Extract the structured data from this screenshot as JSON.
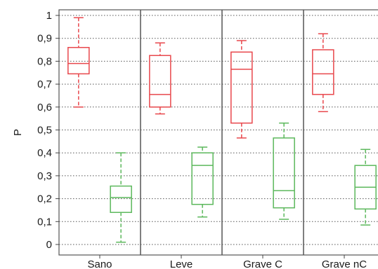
{
  "chart_data": {
    "type": "box",
    "title": "",
    "xlabel": "",
    "ylabel": "P",
    "ylim": [
      0,
      1
    ],
    "yticks": [
      "0",
      "0,1",
      "0,2",
      "0,3",
      "0,4",
      "0,5",
      "0,6",
      "0,7",
      "0,8",
      "0,9",
      "1"
    ],
    "categories": [
      "Sano",
      "Leve",
      "Grave C",
      "Grave nC"
    ],
    "grid": "horizontal-dotted",
    "series": [
      {
        "color": "#e8474c",
        "boxes": [
          {
            "min": 0.6,
            "q1": 0.745,
            "median": 0.79,
            "q3": 0.86,
            "max": 0.99
          },
          {
            "min": 0.57,
            "q1": 0.6,
            "median": 0.655,
            "q3": 0.825,
            "max": 0.88
          },
          {
            "min": 0.465,
            "q1": 0.53,
            "median": 0.765,
            "q3": 0.84,
            "max": 0.89
          },
          {
            "min": 0.58,
            "q1": 0.655,
            "median": 0.745,
            "q3": 0.85,
            "max": 0.92
          }
        ]
      },
      {
        "color": "#5cb85c",
        "boxes": [
          {
            "min": 0.01,
            "q1": 0.14,
            "median": 0.205,
            "q3": 0.255,
            "max": 0.4
          },
          {
            "min": 0.12,
            "q1": 0.175,
            "median": 0.345,
            "q3": 0.4,
            "max": 0.425
          },
          {
            "min": 0.11,
            "q1": 0.16,
            "median": 0.235,
            "q3": 0.465,
            "max": 0.53
          },
          {
            "min": 0.085,
            "q1": 0.155,
            "median": 0.25,
            "q3": 0.345,
            "max": 0.415
          }
        ]
      }
    ]
  }
}
